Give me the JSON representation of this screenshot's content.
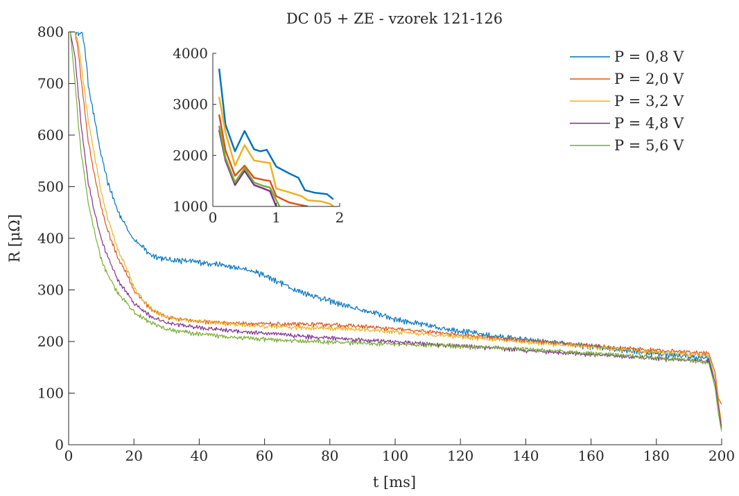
{
  "chart_data": [
    {
      "type": "line",
      "title": "DC 05 + ZE - vzorek 121-126",
      "xlabel": "t [ms]",
      "ylabel": "R [μΩ]",
      "xlim": [
        0,
        200
      ],
      "ylim": [
        0,
        800
      ],
      "xticks": [
        "0",
        "20",
        "40",
        "60",
        "80",
        "100",
        "120",
        "140",
        "160",
        "180",
        "200"
      ],
      "yticks": [
        "0",
        "100",
        "200",
        "300",
        "400",
        "500",
        "600",
        "700",
        "800"
      ],
      "grid": false,
      "legend_position": "top-right",
      "series": [
        {
          "name": "P = 0,8 V",
          "color": "#0072BD",
          "x": [
            0.5,
            2,
            4,
            5,
            6,
            8,
            10,
            12,
            15,
            18,
            20,
            25,
            30,
            35,
            40,
            45,
            50,
            55,
            60,
            65,
            70,
            75,
            80,
            85,
            90,
            95,
            100,
            110,
            120,
            130,
            140,
            150,
            160,
            170,
            180,
            190,
            196,
            198,
            199,
            200
          ],
          "y": [
            800,
            800,
            800,
            770,
            700,
            630,
            560,
            510,
            455,
            420,
            400,
            370,
            360,
            358,
            355,
            352,
            345,
            340,
            330,
            315,
            300,
            290,
            280,
            270,
            262,
            255,
            245,
            232,
            222,
            212,
            205,
            198,
            192,
            185,
            178,
            172,
            168,
            120,
            80,
            35
          ]
        },
        {
          "name": "P = 2,0 V",
          "color": "#D95319",
          "x": [
            0.5,
            2,
            3,
            4,
            6,
            8,
            10,
            12,
            15,
            18,
            20,
            25,
            30,
            40,
            50,
            60,
            70,
            80,
            90,
            100,
            110,
            120,
            130,
            140,
            150,
            160,
            170,
            180,
            190,
            196,
            198,
            199,
            200
          ],
          "y": [
            800,
            800,
            760,
            700,
            590,
            520,
            460,
            415,
            365,
            330,
            300,
            265,
            248,
            240,
            237,
            235,
            234,
            234,
            230,
            225,
            220,
            214,
            208,
            203,
            198,
            193,
            188,
            184,
            180,
            178,
            140,
            90,
            78
          ]
        },
        {
          "name": "P = 3,2 V",
          "color": "#EDB120",
          "x": [
            0.5,
            2,
            3,
            4,
            6,
            8,
            10,
            12,
            15,
            18,
            20,
            25,
            30,
            40,
            50,
            60,
            70,
            80,
            90,
            100,
            110,
            120,
            130,
            140,
            150,
            160,
            170,
            180,
            190,
            196,
            198,
            199,
            200
          ],
          "y": [
            800,
            800,
            780,
            730,
            630,
            560,
            490,
            440,
            380,
            340,
            305,
            265,
            248,
            240,
            235,
            230,
            228,
            227,
            224,
            220,
            215,
            210,
            205,
            200,
            195,
            190,
            185,
            180,
            176,
            174,
            130,
            85,
            40
          ]
        },
        {
          "name": "P = 4,8 V",
          "color": "#7E2F8E",
          "x": [
            0.5,
            2,
            3,
            4,
            6,
            8,
            10,
            12,
            15,
            18,
            20,
            25,
            30,
            40,
            50,
            60,
            70,
            80,
            90,
            100,
            110,
            120,
            130,
            140,
            150,
            160,
            170,
            180,
            190,
            196,
            198,
            199,
            200
          ],
          "y": [
            800,
            750,
            680,
            610,
            510,
            450,
            400,
            365,
            320,
            295,
            275,
            250,
            237,
            228,
            222,
            217,
            212,
            208,
            204,
            200,
            196,
            192,
            188,
            184,
            180,
            176,
            172,
            168,
            164,
            162,
            120,
            75,
            30
          ]
        },
        {
          "name": "P = 5,6 V",
          "color": "#77AC30",
          "x": [
            0.5,
            2,
            3,
            4,
            6,
            8,
            10,
            12,
            15,
            18,
            20,
            25,
            30,
            40,
            50,
            60,
            70,
            80,
            90,
            100,
            110,
            120,
            130,
            140,
            150,
            160,
            170,
            180,
            190,
            196,
            198,
            199,
            200
          ],
          "y": [
            800,
            700,
            620,
            560,
            470,
            410,
            360,
            330,
            295,
            275,
            258,
            238,
            225,
            215,
            210,
            205,
            202,
            200,
            198,
            196,
            194,
            192,
            189,
            186,
            182,
            178,
            174,
            170,
            165,
            160,
            110,
            60,
            25
          ]
        }
      ]
    },
    {
      "type": "line",
      "role": "inset",
      "xlim": [
        0,
        2
      ],
      "ylim": [
        1000,
        4000
      ],
      "xticks": [
        "0",
        "1",
        "2"
      ],
      "yticks": [
        "1000",
        "2000",
        "3000",
        "4000"
      ],
      "series": [
        {
          "name": "P = 0,8 V",
          "color": "#0072BD",
          "x": [
            0.1,
            0.2,
            0.35,
            0.5,
            0.65,
            0.75,
            0.85,
            1.0,
            1.2,
            1.35,
            1.45,
            1.6,
            1.8,
            1.9
          ],
          "y": [
            3700,
            2600,
            2080,
            2480,
            2120,
            2080,
            2110,
            1780,
            1650,
            1560,
            1320,
            1270,
            1240,
            1140
          ]
        },
        {
          "name": "P = 2,0 V",
          "color": "#D95319",
          "x": [
            0.1,
            0.2,
            0.35,
            0.5,
            0.65,
            0.8,
            0.9,
            1.0,
            1.2,
            1.3,
            1.5
          ],
          "y": [
            2800,
            2100,
            1600,
            1800,
            1560,
            1520,
            1500,
            1200,
            1080,
            1050,
            1000
          ]
        },
        {
          "name": "P = 3,2 V",
          "color": "#EDB120",
          "x": [
            0.1,
            0.2,
            0.35,
            0.5,
            0.65,
            0.8,
            0.9,
            1.0,
            1.2,
            1.4,
            1.5,
            1.7,
            1.85,
            1.9
          ],
          "y": [
            3150,
            2450,
            1800,
            2200,
            1900,
            1870,
            1850,
            1350,
            1280,
            1200,
            1120,
            1100,
            1050,
            1000
          ]
        },
        {
          "name": "P = 4,8 V",
          "color": "#7E2F8E",
          "x": [
            0.1,
            0.2,
            0.35,
            0.5,
            0.65,
            0.8,
            0.9,
            1.0
          ],
          "y": [
            2500,
            1900,
            1420,
            1700,
            1420,
            1350,
            1300,
            1000
          ]
        },
        {
          "name": "P = 5,6 V",
          "color": "#77AC30",
          "x": [
            0.1,
            0.2,
            0.35,
            0.5,
            0.65,
            0.8,
            0.9,
            1.05
          ],
          "y": [
            2580,
            1950,
            1470,
            1750,
            1470,
            1400,
            1370,
            1000
          ]
        }
      ]
    }
  ]
}
